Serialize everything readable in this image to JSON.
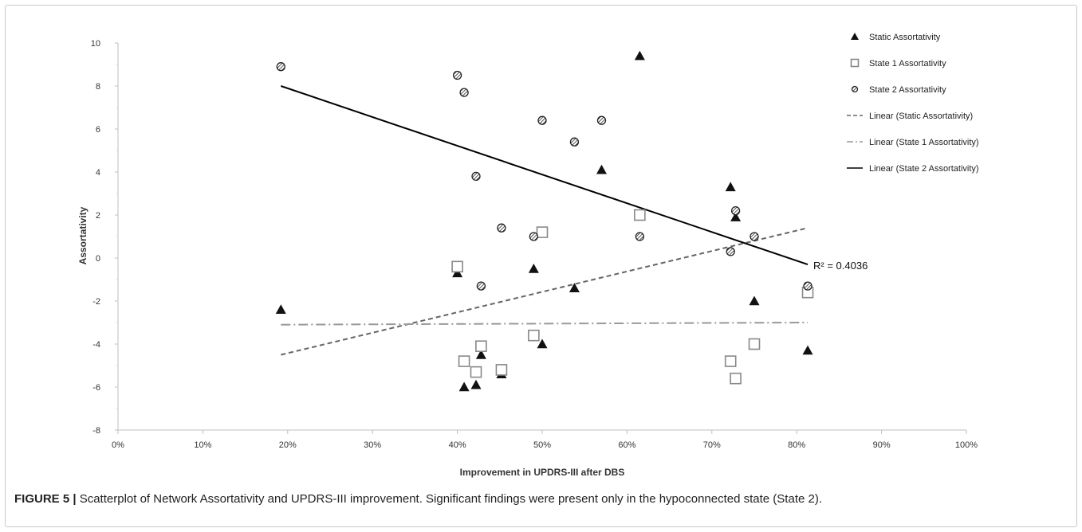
{
  "caption": {
    "label": "FIGURE 5 |",
    "text": " Scatterplot of Network Assortativity and UPDRS-III improvement. Significant findings were present only in the hypoconnected state (State 2)."
  },
  "chart_data": {
    "type": "scatter",
    "xlabel": "Improvement in UPDRS-III after DBS",
    "ylabel": "Assortativity",
    "xlim": [
      0,
      1
    ],
    "ylim": [
      -8,
      10
    ],
    "x_ticks": [
      "0%",
      "10%",
      "20%",
      "30%",
      "40%",
      "50%",
      "60%",
      "70%",
      "80%",
      "90%",
      "100%"
    ],
    "y_ticks": [
      "-8",
      "-6",
      "-4",
      "-2",
      "0",
      "2",
      "4",
      "6",
      "8",
      "10"
    ],
    "grid": false,
    "legend_position": "top-right",
    "series": [
      {
        "name": "Static Assortativity",
        "marker": "triangle",
        "color": "#111111",
        "x": [
          0.192,
          0.4,
          0.408,
          0.422,
          0.428,
          0.452,
          0.49,
          0.5,
          0.538,
          0.57,
          0.615,
          0.722,
          0.728,
          0.75,
          0.813
        ],
        "y": [
          -2.4,
          -0.7,
          -6.0,
          -5.9,
          -4.5,
          -5.4,
          -0.5,
          -4.0,
          -1.4,
          4.1,
          9.4,
          3.3,
          1.9,
          -2.0,
          -4.3
        ]
      },
      {
        "name": "State 1 Assortativity",
        "marker": "square-open",
        "color": "#888888",
        "x": [
          0.4,
          0.408,
          0.422,
          0.428,
          0.452,
          0.49,
          0.5,
          0.615,
          0.722,
          0.728,
          0.75,
          0.813
        ],
        "y": [
          -0.4,
          -4.8,
          -5.3,
          -4.1,
          -5.2,
          -3.6,
          1.2,
          2.0,
          -4.8,
          -5.6,
          -4.0,
          -1.6
        ]
      },
      {
        "name": "State 2 Assortativity",
        "marker": "hatched-circle",
        "color": "#222222",
        "x": [
          0.192,
          0.4,
          0.408,
          0.422,
          0.428,
          0.452,
          0.49,
          0.5,
          0.538,
          0.57,
          0.615,
          0.722,
          0.728,
          0.75,
          0.813
        ],
        "y": [
          8.9,
          8.5,
          7.7,
          3.8,
          -1.3,
          1.4,
          1.0,
          6.4,
          5.4,
          6.4,
          1.0,
          0.3,
          2.2,
          1.0,
          -1.3
        ]
      }
    ],
    "trendlines": [
      {
        "name": "Linear (Static Assortativity)",
        "style": "dashed",
        "color": "#666666",
        "x": [
          0.192,
          0.813
        ],
        "y": [
          -4.5,
          1.4
        ]
      },
      {
        "name": "Linear (State 1 Assortativity)",
        "style": "dash-dot",
        "color": "#999999",
        "x": [
          0.192,
          0.813
        ],
        "y": [
          -3.1,
          -3.0
        ]
      },
      {
        "name": "Linear (State 2 Assortativity)",
        "style": "solid",
        "color": "#000000",
        "x": [
          0.192,
          0.813
        ],
        "y": [
          8.0,
          -0.3
        ]
      }
    ],
    "annotation": {
      "text": "R² = 0.4036",
      "x": 0.813,
      "y": -0.3
    }
  }
}
